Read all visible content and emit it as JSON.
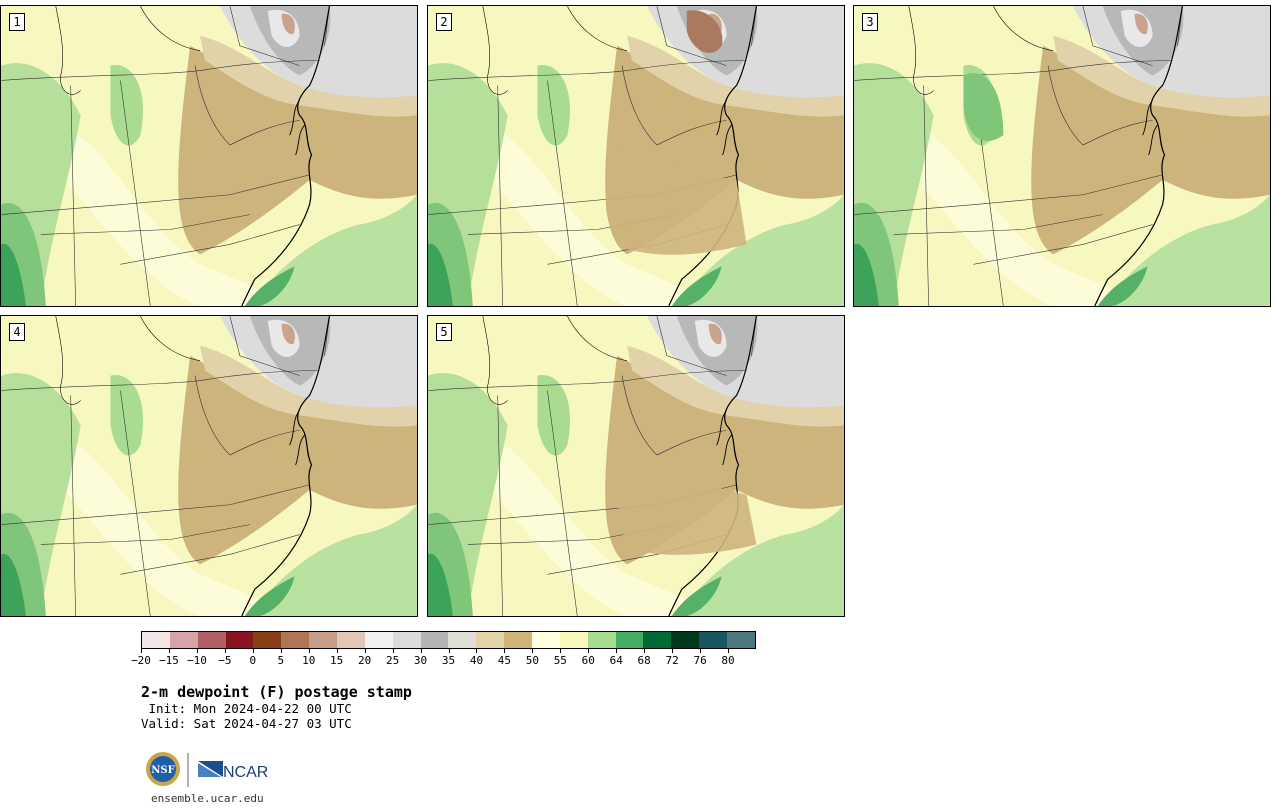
{
  "panels": [
    {
      "label": "1"
    },
    {
      "label": "2"
    },
    {
      "label": "3"
    },
    {
      "label": "4"
    },
    {
      "label": "5"
    }
  ],
  "colorbar": {
    "colors": [
      "#f2e6e6",
      "#d4a4a8",
      "#b35e64",
      "#8b1420",
      "#8a4016",
      "#b07552",
      "#c89f86",
      "#e2c6b6",
      "#f2f2f2",
      "#dcdcdc",
      "#b4b4b4",
      "#dfe0d3",
      "#e3d3a9",
      "#cfb57c",
      "#fffee0",
      "#f7fab8",
      "#a7db8e",
      "#43ad64",
      "#006b37",
      "#00391f",
      "#18575f",
      "#4b797e"
    ],
    "tick_labels": [
      "−20",
      "−15",
      "−10",
      "−5",
      "0",
      "5",
      "10",
      "15",
      "20",
      "25",
      "30",
      "35",
      "40",
      "45",
      "50",
      "55",
      "60",
      "64",
      "68",
      "72",
      "76",
      "80"
    ]
  },
  "title": "2-m dewpoint (F) postage stamp",
  "init": " Init: Mon 2024-04-22 00 UTC",
  "valid": "Valid: Sat 2024-04-27 03 UTC",
  "logos": {
    "nsf": "NSF",
    "ncar": "NCAR"
  },
  "site": "ensemble.ucar.edu"
}
